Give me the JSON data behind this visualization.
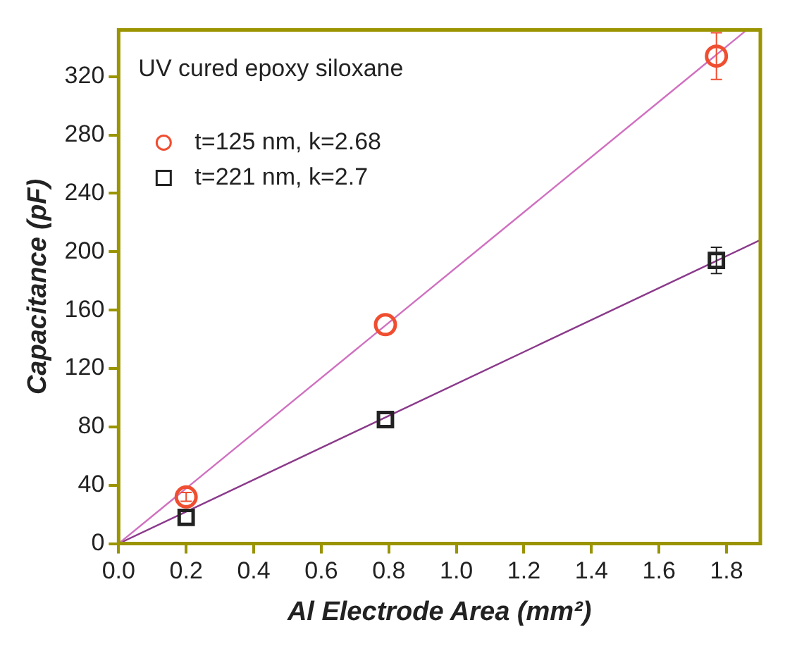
{
  "chart_data": {
    "type": "scatter",
    "xlabel": "Al Electrode Area (mm²)",
    "ylabel": "Capacitance (pF)",
    "legend_title": "UV cured epoxy siloxane",
    "legend": "top left",
    "grid": false,
    "xlim": [
      0,
      1.9
    ],
    "ylim": [
      0,
      352
    ],
    "xticks": [
      {
        "value": 0,
        "label": "0.0"
      },
      0.2,
      0.4,
      0.6,
      0.8,
      {
        "value": 1,
        "label": "1.0"
      },
      1.2,
      1.4,
      1.6,
      1.8
    ],
    "yticks": [
      0,
      40,
      80,
      120,
      160,
      200,
      240,
      280,
      320
    ],
    "series": [
      {
        "name": "t=125 nm, k=2.68",
        "color": "#f04e30",
        "marker": "circle",
        "x": [
          0.2,
          0.79,
          1.77
        ],
        "values": [
          32,
          150,
          334
        ],
        "errors": [
          3,
          null,
          16
        ]
      },
      {
        "name": "t=221 nm, k=2.7",
        "color": "#222222",
        "marker": "square",
        "x": [
          0.2,
          0.79,
          1.77
        ],
        "values": [
          18,
          85,
          194
        ],
        "errors": [
          null,
          null,
          9
        ]
      },
      {
        "type": "line",
        "color": "#d070c0",
        "marker": "none",
        "x": [
          0,
          1.86
        ],
        "values": [
          0,
          352
        ]
      },
      {
        "type": "line",
        "color": "#8b3a8b",
        "marker": "none",
        "x": [
          0,
          1.9
        ],
        "values": [
          0,
          208
        ]
      }
    ]
  }
}
